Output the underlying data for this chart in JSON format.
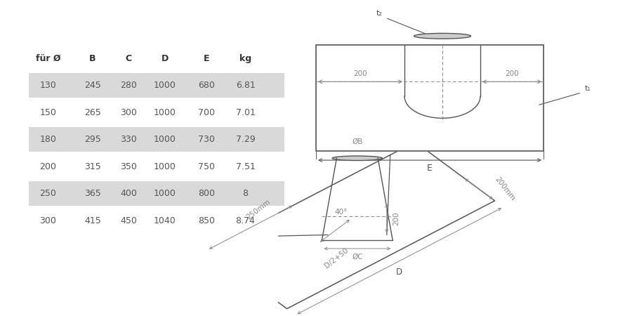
{
  "table_headers": [
    "für Ø",
    "B",
    "C",
    "D",
    "E",
    "kg"
  ],
  "table_rows": [
    [
      "130",
      "245",
      "280",
      "1000",
      "680",
      "6.81"
    ],
    [
      "150",
      "265",
      "300",
      "1000",
      "700",
      "7.01"
    ],
    [
      "180",
      "295",
      "330",
      "1000",
      "730",
      "7.29"
    ],
    [
      "200",
      "315",
      "350",
      "1000",
      "750",
      "7.51"
    ],
    [
      "250",
      "365",
      "400",
      "1000",
      "800",
      "8"
    ],
    [
      "300",
      "415",
      "450",
      "1040",
      "850",
      "8.74"
    ]
  ],
  "shaded_rows": [
    0,
    2,
    4
  ],
  "row_bg_shaded": "#d9d9d9",
  "row_bg_white": "#ffffff",
  "text_color": "#555555",
  "header_color": "#333333",
  "bg_color": "#ffffff",
  "line_color": "#555555",
  "dim_line_color": "#888888"
}
